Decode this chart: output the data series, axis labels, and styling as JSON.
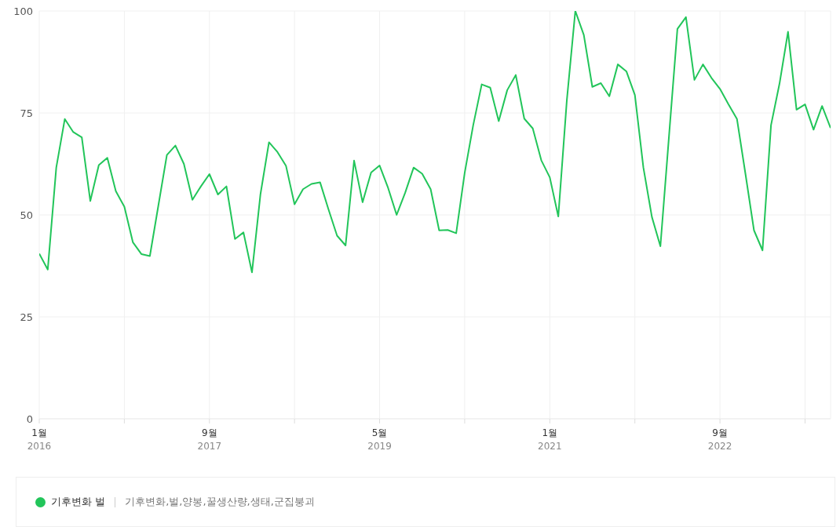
{
  "chart_data": {
    "type": "line",
    "x": [
      "2016-01",
      "2016-02",
      "2016-03",
      "2016-04",
      "2016-05",
      "2016-06",
      "2016-07",
      "2016-08",
      "2016-09",
      "2016-10",
      "2016-11",
      "2016-12",
      "2017-01",
      "2017-02",
      "2017-03",
      "2017-04",
      "2017-05",
      "2017-06",
      "2017-07",
      "2017-08",
      "2017-09",
      "2017-10",
      "2017-11",
      "2017-12",
      "2018-01",
      "2018-02",
      "2018-03",
      "2018-04",
      "2018-05",
      "2018-06",
      "2018-07",
      "2018-08",
      "2018-09",
      "2018-10",
      "2018-11",
      "2018-12",
      "2019-01",
      "2019-02",
      "2019-03",
      "2019-04",
      "2019-05",
      "2019-06",
      "2019-07",
      "2019-08",
      "2019-09",
      "2019-10",
      "2019-11",
      "2019-12",
      "2020-01",
      "2020-02",
      "2020-03",
      "2020-04",
      "2020-05",
      "2020-06",
      "2020-07",
      "2020-08",
      "2020-09",
      "2020-10",
      "2020-11",
      "2020-12",
      "2021-01",
      "2021-02",
      "2021-03",
      "2021-04",
      "2021-05",
      "2021-06",
      "2021-07",
      "2021-08",
      "2021-09",
      "2021-10",
      "2021-11",
      "2021-12",
      "2022-01",
      "2022-02",
      "2022-03",
      "2022-04",
      "2022-05",
      "2022-06",
      "2022-07",
      "2022-08",
      "2022-09",
      "2022-10",
      "2022-11",
      "2022-12",
      "2023-01",
      "2023-02",
      "2023-03",
      "2023-04",
      "2023-05",
      "2023-06",
      "2023-07",
      "2023-08",
      "2023-09",
      "2023-10"
    ],
    "series": [
      {
        "name": "기후변화 벌",
        "color": "#22c55a",
        "values": [
          40.5,
          36.6,
          61.6,
          73.5,
          70.3,
          69,
          53.4,
          62.2,
          64,
          55.8,
          52,
          43.3,
          40.4,
          39.9,
          52.3,
          64.7,
          67,
          62.5,
          53.7,
          57,
          60,
          55,
          57,
          44.1,
          45.7,
          35.9,
          55.1,
          67.8,
          65.4,
          62,
          52.6,
          56.3,
          57.6,
          58,
          51.3,
          44.9,
          42.5,
          63.3,
          53.1,
          60.4,
          62.1,
          56.6,
          50,
          55.4,
          61.6,
          60.1,
          56.3,
          46.2,
          46.3,
          45.5,
          60.3,
          72,
          82,
          81.2,
          73,
          80.6,
          84.3,
          73.6,
          71.2,
          63.4,
          59.2,
          49.6,
          78,
          100,
          94.1,
          81.4,
          82.3,
          79.1,
          86.9,
          85.2,
          79.4,
          61.6,
          49.5,
          42.3,
          69,
          95.6,
          98.5,
          83.1,
          86.9,
          83.6,
          80.9,
          77.1,
          73.5,
          60,
          46.2,
          41.3,
          72,
          82.2,
          94.9,
          75.8,
          77.1,
          70.9,
          76.7,
          71.3
        ]
      }
    ],
    "xlim": [
      "2016-01",
      "2023-10"
    ],
    "xticks": [
      {
        "value": "2016-01",
        "label": "1월\n2016"
      },
      {
        "value": "2016-11",
        "label": null
      },
      {
        "value": "2017-09",
        "label": "9월\n2017"
      },
      {
        "value": "2018-07",
        "label": null
      },
      {
        "value": "2019-05",
        "label": "5월\n2019"
      },
      {
        "value": "2020-03",
        "label": null
      },
      {
        "value": "2021-01",
        "label": "1월\n2021"
      },
      {
        "value": "2021-11",
        "label": null
      },
      {
        "value": "2022-09",
        "label": "9월\n2022"
      },
      {
        "value": "2023-07",
        "label": null
      }
    ],
    "ylim": [
      0,
      100
    ],
    "yticks": [
      0,
      25,
      50,
      75,
      100
    ],
    "grid": true,
    "legend": "bottom",
    "marker": "none",
    "line_style": "solid",
    "annotations": [
      "기후변화,벌,양봉,꿀생산량,생태,군집붕괴"
    ]
  }
}
